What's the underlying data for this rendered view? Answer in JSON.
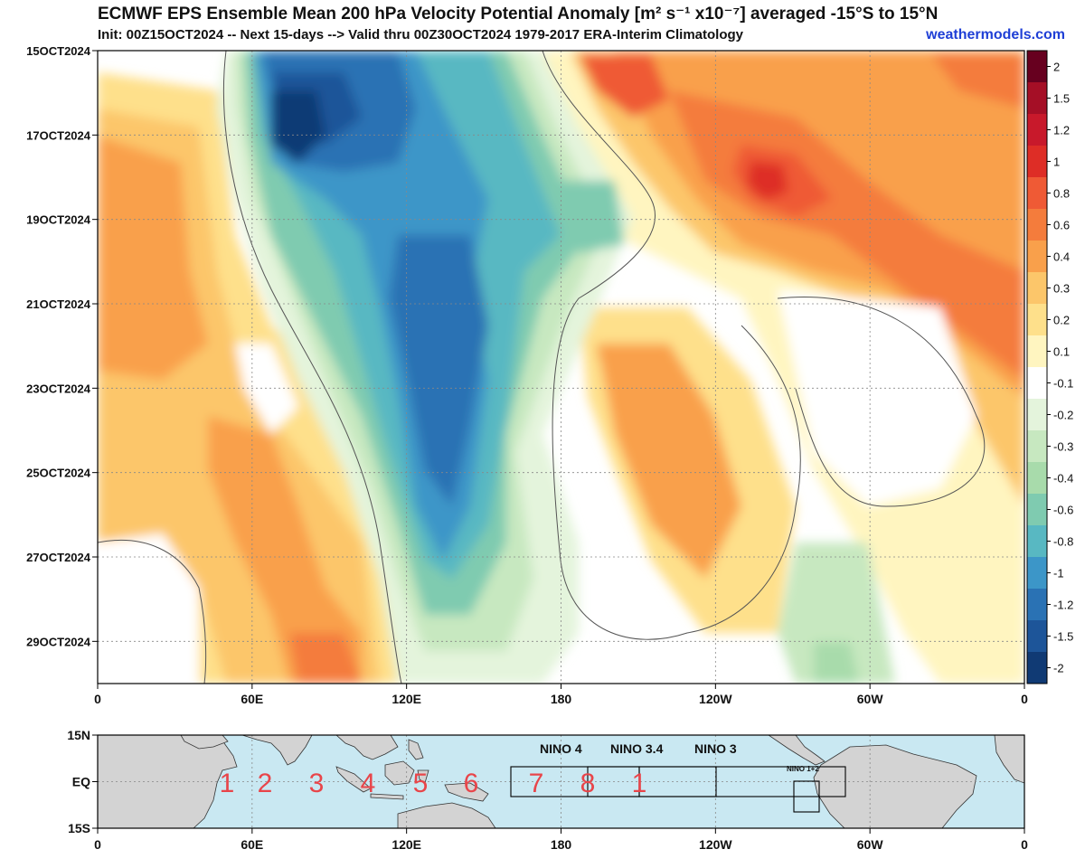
{
  "header": {
    "title": "ECMWF EPS Ensemble Mean 200 hPa Velocity Potential Anomaly [m² s⁻¹ x10⁻⁷] averaged -15°S to 15°N",
    "subtitle": "Init: 00Z15OCT2024 -- Next 15-days --> Valid thru 00Z30OCT2024 1979-2017 ERA-Interim Climatology",
    "credit": "weathermodels.com"
  },
  "chart_data": [
    {
      "type": "heatmap",
      "title": "ECMWF EPS Ensemble Mean 200 hPa Velocity Potential Anomaly [m² s⁻¹ x10⁻⁷] averaged -15°S to 15°N",
      "x_ticks": [
        "0",
        "60E",
        "120E",
        "180",
        "120W",
        "60W",
        "0"
      ],
      "x_range_deg_east": [
        0,
        360
      ],
      "y_ticks": [
        "15OCT2024",
        "17OCT2024",
        "19OCT2024",
        "21OCT2024",
        "23OCT2024",
        "25OCT2024",
        "27OCT2024",
        "29OCT2024"
      ],
      "y_direction": "time increases downward",
      "colorbar": {
        "levels": [
          "2",
          "1.5",
          "1.2",
          "1",
          "0.8",
          "0.6",
          "0.4",
          "0.3",
          "0.2",
          "0.1",
          "-0.1",
          "-0.2",
          "-0.3",
          "-0.4",
          "-0.6",
          "-0.8",
          "-1",
          "-1.2",
          "-1.5",
          "-2"
        ],
        "colors": [
          "#67001f",
          "#a50f26",
          "#c8192b",
          "#de2d26",
          "#ef5a35",
          "#f47c3c",
          "#f9a04b",
          "#fcc66a",
          "#fee08b",
          "#fff5c0",
          "#ffffff",
          "#e4f4dc",
          "#c7e8c0",
          "#a8dbab",
          "#7fcbb0",
          "#58b8c2",
          "#3c96c8",
          "#2a72b4",
          "#1d5599",
          "#103a74"
        ]
      },
      "grid": "dotted",
      "features": [
        {
          "description": "negative anomaly (blue) centered near 70E-80E on 15-17OCT, shifting east",
          "value_min": -1.5
        },
        {
          "description": "negative anomaly axis near 120E-140E through 27OCT",
          "value_min": -1.2
        },
        {
          "description": "positive anomaly maximum near 105W on 18OCT",
          "value_max": 1.0
        },
        {
          "description": "positive anomaly near 40E-90E late period",
          "value_max": 0.6
        }
      ]
    },
    {
      "type": "map",
      "x_ticks": [
        "0",
        "60E",
        "120E",
        "180",
        "120W",
        "60W",
        "0"
      ],
      "y_ticks": [
        "15N",
        "EQ",
        "15S"
      ],
      "mjo_phase_labels": [
        "1",
        "2",
        "3",
        "4",
        "5",
        "6",
        "7",
        "8",
        "1"
      ],
      "nino_regions": [
        "NINO 4",
        "NINO 3.4",
        "NINO 3",
        "NINO 1+2"
      ]
    }
  ]
}
